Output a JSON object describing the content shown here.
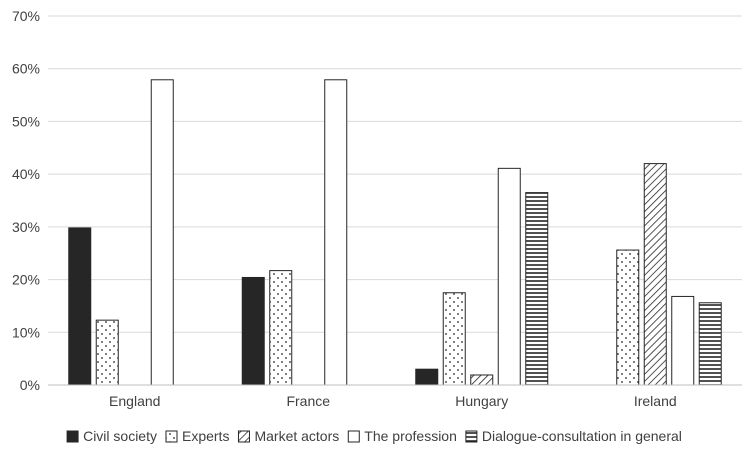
{
  "chart_data": {
    "type": "bar",
    "title": "",
    "xlabel": "",
    "ylabel": "",
    "ylim": [
      0,
      70
    ],
    "y_ticks": [
      "0%",
      "10%",
      "20%",
      "30%",
      "40%",
      "50%",
      "60%",
      "70%"
    ],
    "grid": true,
    "legend_position": "bottom",
    "categories": [
      "England",
      "France",
      "Hungary",
      "Ireland"
    ],
    "series": [
      {
        "name": "Civil society",
        "pattern": "solid",
        "color": "#262626",
        "values": [
          29.8,
          20.4,
          3.0,
          0
        ]
      },
      {
        "name": "Experts",
        "pattern": "dots",
        "color": "#ffffff",
        "values": [
          12.3,
          21.7,
          17.5,
          25.6
        ]
      },
      {
        "name": "Market actors",
        "pattern": "diagonal",
        "color": "#ffffff",
        "values": [
          0,
          0,
          1.9,
          42.0
        ]
      },
      {
        "name": "The profession",
        "pattern": "none",
        "color": "#ffffff",
        "values": [
          57.9,
          57.9,
          41.1,
          16.8
        ]
      },
      {
        "name": "Dialogue-consultation in general",
        "pattern": "horizontal",
        "color": "#ffffff",
        "values": [
          0,
          0,
          36.5,
          15.6
        ]
      }
    ]
  }
}
